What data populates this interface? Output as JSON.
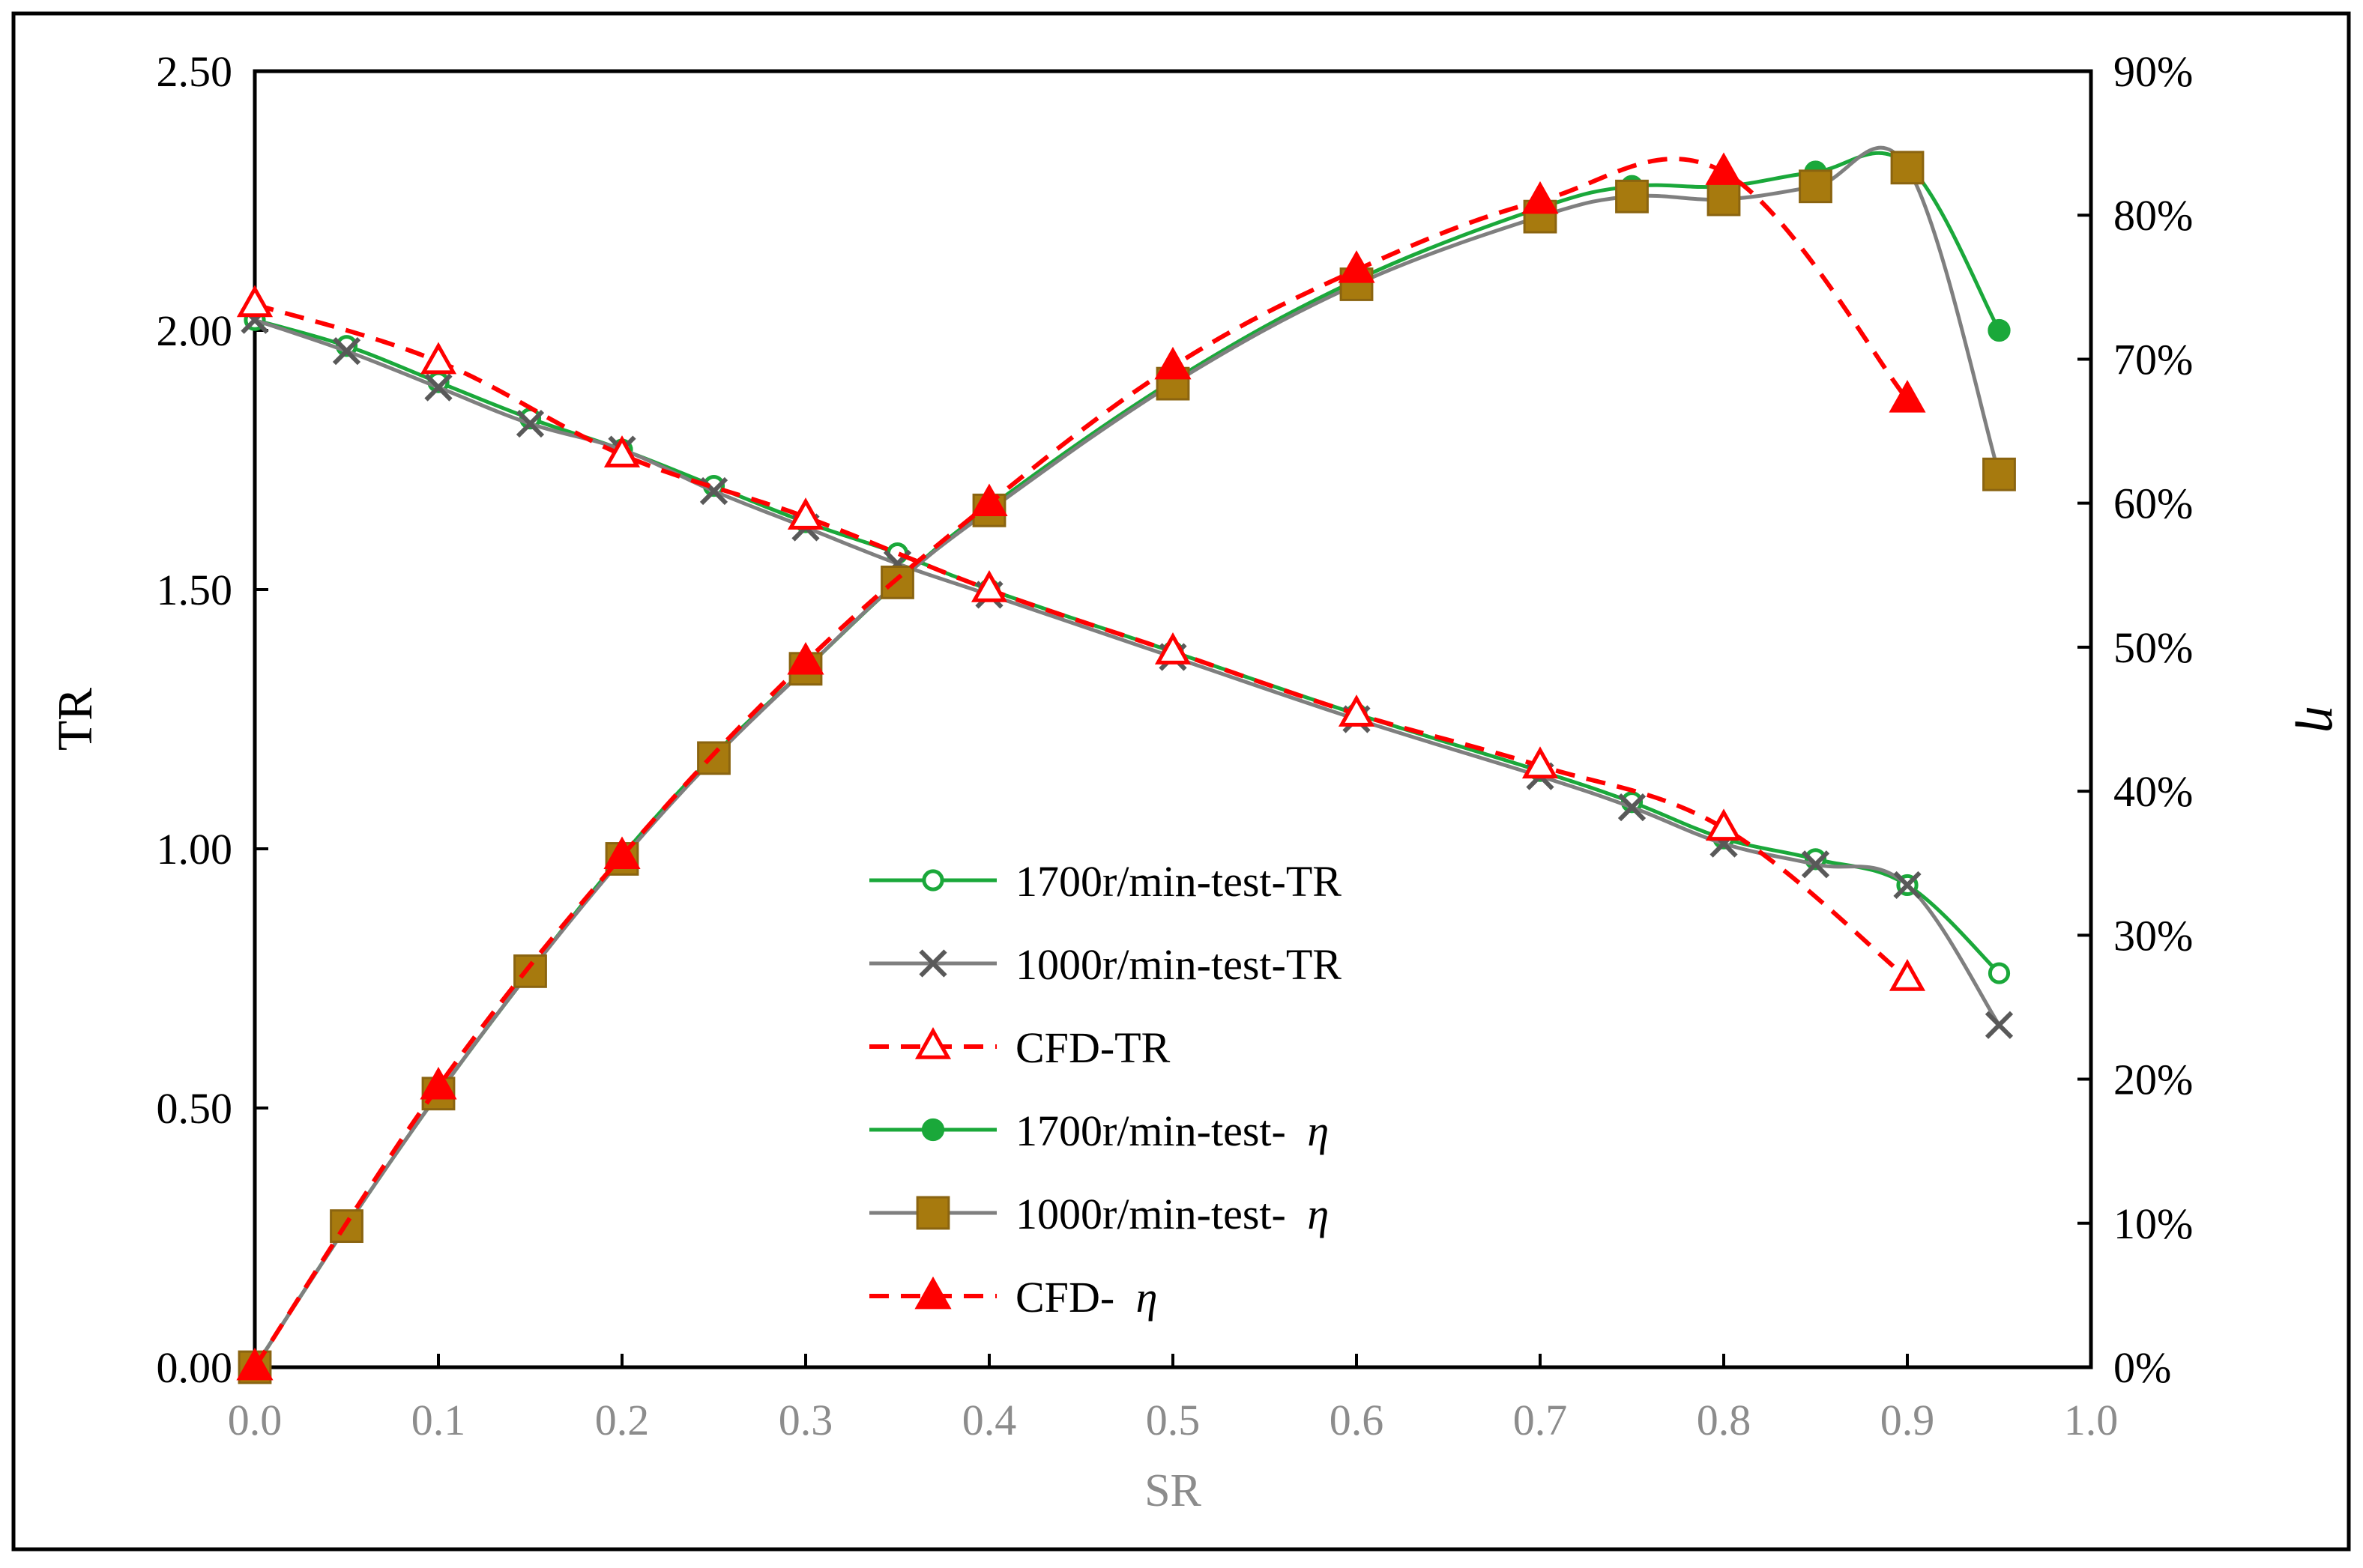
{
  "chart_data": {
    "type": "line",
    "title": "",
    "xlabel": "SR",
    "ylabel_left": "TR",
    "ylabel_right": "η",
    "xlim": [
      0,
      1.0
    ],
    "ylim_left": [
      0,
      2.5
    ],
    "ylim_right": [
      0,
      0.9
    ],
    "x_ticks": [
      "0.0",
      "0.1",
      "0.2",
      "0.3",
      "0.4",
      "0.5",
      "0.6",
      "0.7",
      "0.8",
      "0.9",
      "1.0"
    ],
    "y_left_ticks": [
      "0.00",
      "0.50",
      "1.00",
      "1.50",
      "2.00",
      "2.50"
    ],
    "y_right_ticks": [
      "0%",
      "10%",
      "20%",
      "30%",
      "40%",
      "50%",
      "60%",
      "70%",
      "80%",
      "90%"
    ],
    "grid": false,
    "legend_position": "center-bottom",
    "series": [
      {
        "name": "1700r/min-test-TR",
        "legend_label": "1700r/min-test-TR",
        "legend_symbol": "",
        "axis": "left",
        "color": "#1aa83a",
        "marker": "open-circle",
        "dash": false,
        "x": [
          0,
          0.05,
          0.1,
          0.15,
          0.2,
          0.25,
          0.3,
          0.35,
          0.4,
          0.5,
          0.6,
          0.7,
          0.75,
          0.8,
          0.85,
          0.9,
          0.95
        ],
        "y": [
          2.02,
          1.97,
          1.9,
          1.83,
          1.77,
          1.7,
          1.63,
          1.57,
          1.5,
          1.38,
          1.26,
          1.15,
          1.09,
          1.02,
          0.98,
          0.93,
          0.76
        ]
      },
      {
        "name": "1000r/min-test-TR",
        "legend_label": "1000r/min-test-TR",
        "legend_symbol": "",
        "axis": "left",
        "color": "#7f7f7f",
        "marker": "x",
        "dash": false,
        "x": [
          0,
          0.05,
          0.1,
          0.15,
          0.2,
          0.25,
          0.3,
          0.35,
          0.4,
          0.5,
          0.6,
          0.7,
          0.75,
          0.8,
          0.85,
          0.9,
          0.95
        ],
        "y": [
          2.02,
          1.96,
          1.89,
          1.82,
          1.77,
          1.69,
          1.62,
          1.55,
          1.49,
          1.37,
          1.25,
          1.14,
          1.08,
          1.01,
          0.97,
          0.93,
          0.66
        ]
      },
      {
        "name": "CFD-TR",
        "legend_label": "CFD-TR",
        "legend_symbol": "",
        "axis": "left",
        "color": "#ff0000",
        "marker": "open-triangle",
        "dash": true,
        "x": [
          0,
          0.1,
          0.2,
          0.3,
          0.4,
          0.5,
          0.6,
          0.7,
          0.8,
          0.9
        ],
        "y": [
          2.05,
          1.94,
          1.76,
          1.64,
          1.5,
          1.38,
          1.26,
          1.16,
          1.04,
          0.75
        ]
      },
      {
        "name": "1700r/min-test-η",
        "legend_label": "1700r/min-test- ",
        "legend_symbol": "η",
        "axis": "right",
        "color": "#1aa83a",
        "marker": "filled-circle",
        "dash": false,
        "x": [
          0,
          0.05,
          0.1,
          0.15,
          0.2,
          0.25,
          0.3,
          0.35,
          0.4,
          0.5,
          0.6,
          0.7,
          0.75,
          0.8,
          0.85,
          0.9,
          0.95
        ],
        "y": [
          0.0,
          0.098,
          0.19,
          0.275,
          0.355,
          0.425,
          0.485,
          0.545,
          0.597,
          0.685,
          0.755,
          0.805,
          0.82,
          0.82,
          0.83,
          0.835,
          0.72
        ]
      },
      {
        "name": "1000r/min-test-η",
        "legend_label": "1000r/min-test- ",
        "legend_symbol": "η",
        "axis": "right",
        "color": "#7f7f7f",
        "marker": "square",
        "marker_color": "#a77a0e",
        "dash": false,
        "x": [
          0,
          0.05,
          0.1,
          0.15,
          0.2,
          0.25,
          0.3,
          0.35,
          0.4,
          0.5,
          0.6,
          0.7,
          0.75,
          0.8,
          0.85,
          0.9,
          0.95
        ],
        "y": [
          0.0,
          0.098,
          0.19,
          0.275,
          0.353,
          0.423,
          0.485,
          0.545,
          0.595,
          0.683,
          0.752,
          0.799,
          0.813,
          0.811,
          0.82,
          0.833,
          0.62
        ]
      },
      {
        "name": "CFD-η",
        "legend_label": "CFD- ",
        "legend_symbol": "η",
        "axis": "right",
        "color": "#ff0000",
        "marker": "filled-triangle",
        "dash": true,
        "x": [
          0,
          0.1,
          0.2,
          0.3,
          0.4,
          0.5,
          0.6,
          0.7,
          0.8,
          0.9
        ],
        "y": [
          0.0,
          0.195,
          0.355,
          0.49,
          0.6,
          0.695,
          0.762,
          0.81,
          0.83,
          0.672
        ]
      }
    ]
  }
}
